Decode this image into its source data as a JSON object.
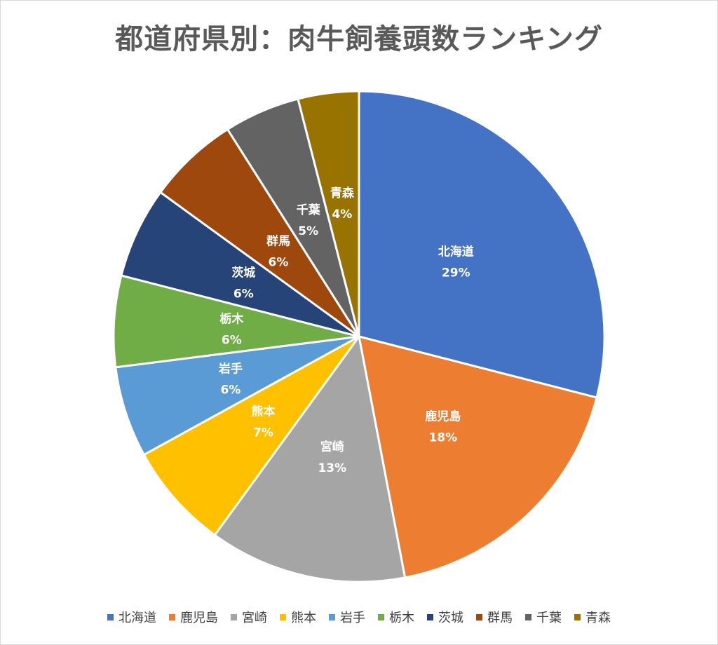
{
  "chart_data": {
    "type": "pie",
    "title": "都道府県別：肉牛飼養頭数ランキング",
    "categories": [
      "北海道",
      "鹿児島",
      "宮崎",
      "熊本",
      "岩手",
      "栃木",
      "茨城",
      "群馬",
      "千葉",
      "青森"
    ],
    "values": [
      29,
      18,
      13,
      7,
      6,
      6,
      6,
      6,
      5,
      4
    ],
    "value_labels": [
      "29%",
      "18%",
      "13%",
      "7%",
      "6%",
      "6%",
      "6%",
      "6%",
      "5%",
      "4%"
    ],
    "colors": [
      "#4472C4",
      "#ED7D31",
      "#A5A5A5",
      "#FFC000",
      "#5B9BD5",
      "#70AD47",
      "#264478",
      "#9E480E",
      "#636363",
      "#997300"
    ],
    "legend_position": "bottom",
    "start_angle": "top",
    "direction": "clockwise"
  }
}
